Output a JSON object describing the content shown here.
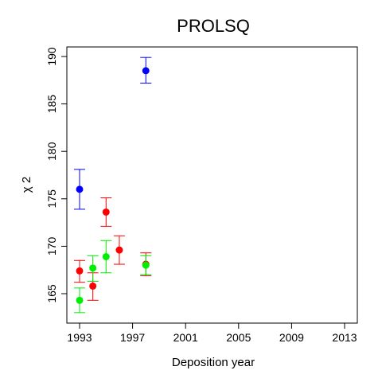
{
  "chart_data": {
    "type": "scatter",
    "title": "PROLSQ",
    "xlabel": "Deposition year",
    "ylabel": "χ 2",
    "xlim": [
      1993,
      2013
    ],
    "ylim": [
      162,
      191
    ],
    "xticks": [
      1993,
      1997,
      2001,
      2005,
      2009,
      2013
    ],
    "yticks": [
      165,
      170,
      175,
      180,
      185,
      190
    ],
    "grid": false,
    "legend": "none",
    "series": [
      {
        "color": "#0000ff",
        "points": [
          {
            "x": 1993,
            "y": 176.0,
            "lo": 173.9,
            "hi": 178.1
          },
          {
            "x": 1998,
            "y": 188.5,
            "lo": 187.2,
            "hi": 189.9
          }
        ]
      },
      {
        "color": "#ff0000",
        "points": [
          {
            "x": 1993,
            "y": 167.4,
            "lo": 166.2,
            "hi": 168.5
          },
          {
            "x": 1994,
            "y": 165.8,
            "lo": 164.3,
            "hi": 167.2
          },
          {
            "x": 1995,
            "y": 173.6,
            "lo": 172.1,
            "hi": 175.1
          },
          {
            "x": 1996,
            "y": 169.6,
            "lo": 168.1,
            "hi": 171.1
          },
          {
            "x": 1998,
            "y": 168.1,
            "lo": 166.9,
            "hi": 169.3
          }
        ]
      },
      {
        "color": "#00ee00",
        "points": [
          {
            "x": 1993,
            "y": 164.3,
            "lo": 163.0,
            "hi": 165.6
          },
          {
            "x": 1994,
            "y": 167.7,
            "lo": 166.3,
            "hi": 169.0
          },
          {
            "x": 1995,
            "y": 168.9,
            "lo": 167.2,
            "hi": 170.6
          },
          {
            "x": 1998,
            "y": 168.0,
            "lo": 167.0,
            "hi": 169.0
          }
        ]
      }
    ]
  }
}
